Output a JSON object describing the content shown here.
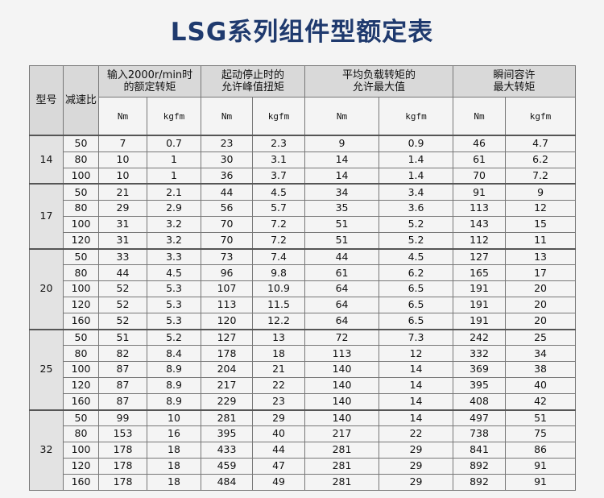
{
  "title": "LSG系列组件型额定表",
  "headers": {
    "model": "型号",
    "ratio": "减速比",
    "input_torque": "输入2000r/min时\n的额定转矩",
    "peak_torque": "起动停止时的\n允许峰值扭矩",
    "avg_load": "平均负载转矩的\n允许最大值",
    "instant": "瞬间容许\n最大转矩",
    "units": [
      "Nm",
      "kgfm",
      "Nm",
      "kgfm",
      "Nm",
      "kgfm",
      "Nm",
      "kgfm"
    ]
  },
  "groups": [
    {
      "model": "14",
      "rows": [
        [
          "50",
          "7",
          "0.7",
          "23",
          "2.3",
          "9",
          "0.9",
          "46",
          "4.7"
        ],
        [
          "80",
          "10",
          "1",
          "30",
          "3.1",
          "14",
          "1.4",
          "61",
          "6.2"
        ],
        [
          "100",
          "10",
          "1",
          "36",
          "3.7",
          "14",
          "1.4",
          "70",
          "7.2"
        ]
      ]
    },
    {
      "model": "17",
      "rows": [
        [
          "50",
          "21",
          "2.1",
          "44",
          "4.5",
          "34",
          "3.4",
          "91",
          "9"
        ],
        [
          "80",
          "29",
          "2.9",
          "56",
          "5.7",
          "35",
          "3.6",
          "113",
          "12"
        ],
        [
          "100",
          "31",
          "3.2",
          "70",
          "7.2",
          "51",
          "5.2",
          "143",
          "15"
        ],
        [
          "120",
          "31",
          "3.2",
          "70",
          "7.2",
          "51",
          "5.2",
          "112",
          "11"
        ]
      ]
    },
    {
      "model": "20",
      "rows": [
        [
          "50",
          "33",
          "3.3",
          "73",
          "7.4",
          "44",
          "4.5",
          "127",
          "13"
        ],
        [
          "80",
          "44",
          "4.5",
          "96",
          "9.8",
          "61",
          "6.2",
          "165",
          "17"
        ],
        [
          "100",
          "52",
          "5.3",
          "107",
          "10.9",
          "64",
          "6.5",
          "191",
          "20"
        ],
        [
          "120",
          "52",
          "5.3",
          "113",
          "11.5",
          "64",
          "6.5",
          "191",
          "20"
        ],
        [
          "160",
          "52",
          "5.3",
          "120",
          "12.2",
          "64",
          "6.5",
          "191",
          "20"
        ]
      ]
    },
    {
      "model": "25",
      "rows": [
        [
          "50",
          "51",
          "5.2",
          "127",
          "13",
          "72",
          "7.3",
          "242",
          "25"
        ],
        [
          "80",
          "82",
          "8.4",
          "178",
          "18",
          "113",
          "12",
          "332",
          "34"
        ],
        [
          "100",
          "87",
          "8.9",
          "204",
          "21",
          "140",
          "14",
          "369",
          "38"
        ],
        [
          "120",
          "87",
          "8.9",
          "217",
          "22",
          "140",
          "14",
          "395",
          "40"
        ],
        [
          "160",
          "87",
          "8.9",
          "229",
          "23",
          "140",
          "14",
          "408",
          "42"
        ]
      ]
    },
    {
      "model": "32",
      "rows": [
        [
          "50",
          "99",
          "10",
          "281",
          "29",
          "140",
          "14",
          "497",
          "51"
        ],
        [
          "80",
          "153",
          "16",
          "395",
          "40",
          "217",
          "22",
          "738",
          "75"
        ],
        [
          "100",
          "178",
          "18",
          "433",
          "44",
          "281",
          "29",
          "841",
          "86"
        ],
        [
          "120",
          "178",
          "18",
          "459",
          "47",
          "281",
          "29",
          "892",
          "91"
        ],
        [
          "160",
          "178",
          "18",
          "484",
          "49",
          "281",
          "29",
          "892",
          "91"
        ]
      ]
    }
  ]
}
